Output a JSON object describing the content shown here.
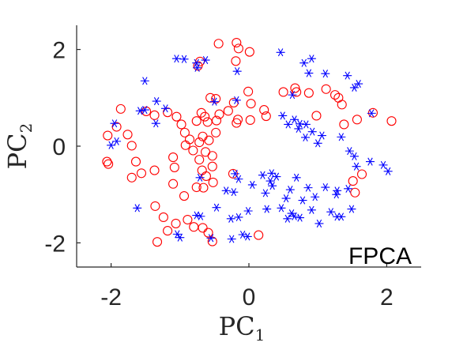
{
  "chart_data": {
    "type": "scatter",
    "title": "",
    "annotation": "FPCA",
    "xlabel": {
      "main": "PC",
      "sub": "1"
    },
    "ylabel": {
      "main": "PC",
      "sub": "2"
    },
    "xlim": [
      -2.5,
      2.5
    ],
    "ylim": [
      -2.5,
      2.5
    ],
    "x_ticks": [
      -2,
      0,
      2
    ],
    "y_ticks": [
      -2,
      0,
      2
    ],
    "x_tick_labels": [
      "-2",
      "0",
      "2"
    ],
    "y_tick_labels": [
      "-2",
      "0",
      "2"
    ],
    "grid": false,
    "legend": "none",
    "series": [
      {
        "marker": "circle",
        "color": "#ff0000",
        "points": [
          [
            -0.44,
            2.12
          ],
          [
            -0.18,
            2.14
          ],
          [
            -0.15,
            2.02
          ],
          [
            0.01,
            1.95
          ],
          [
            -0.19,
            1.76
          ],
          [
            -0.71,
            1.75
          ],
          [
            -0.74,
            1.66
          ],
          [
            -1.86,
            0.77
          ],
          [
            -1.92,
            0.4
          ],
          [
            -2.05,
            0.22
          ],
          [
            -2.06,
            -0.32
          ],
          [
            -2.04,
            -0.37
          ],
          [
            -1.76,
            0.24
          ],
          [
            -1.7,
            0.01
          ],
          [
            -1.64,
            -0.32
          ],
          [
            -1.56,
            -0.56
          ],
          [
            -1.7,
            -0.65
          ],
          [
            -1.37,
            -0.5
          ],
          [
            -1.1,
            -0.23
          ],
          [
            -1.08,
            -0.44
          ],
          [
            -1.1,
            -0.78
          ],
          [
            -1.36,
            -1.24
          ],
          [
            -1.24,
            -1.47
          ],
          [
            -1.18,
            -1.75
          ],
          [
            -1.33,
            -1.98
          ],
          [
            -1.06,
            -1.6
          ],
          [
            -0.89,
            -1.52
          ],
          [
            -0.94,
            -1.03
          ],
          [
            -0.66,
            -0.86
          ],
          [
            -0.76,
            -0.85
          ],
          [
            -0.8,
            -1.67
          ],
          [
            -0.67,
            -1.69
          ],
          [
            -0.59,
            -1.79
          ],
          [
            -0.53,
            -1.97
          ],
          [
            -0.23,
            -0.57
          ],
          [
            0.14,
            -1.84
          ],
          [
            -1.49,
            0.72
          ],
          [
            -1.37,
            0.64
          ],
          [
            -1.18,
            0.7
          ],
          [
            -1.05,
            0.61
          ],
          [
            -0.98,
            0.45
          ],
          [
            -0.93,
            0.28
          ],
          [
            -0.86,
            0.14
          ],
          [
            -0.92,
            0.02
          ],
          [
            -0.76,
            0.52
          ],
          [
            -0.69,
            0.69
          ],
          [
            -0.6,
            0.5
          ],
          [
            -0.58,
            0.12
          ],
          [
            -0.63,
            -0.12
          ],
          [
            -0.72,
            -0.28
          ],
          [
            -0.68,
            -0.5
          ],
          [
            -0.62,
            -0.62
          ],
          [
            -0.53,
            -0.42
          ],
          [
            -0.52,
            -0.75
          ],
          [
            -0.53,
            -0.2
          ],
          [
            -0.48,
            0.28
          ],
          [
            -0.56,
            1.0
          ],
          [
            -0.48,
            0.98
          ],
          [
            -0.43,
            0.66
          ],
          [
            -0.3,
            0.73
          ],
          [
            -0.22,
            0.9
          ],
          [
            -0.18,
            0.48
          ],
          [
            -0.16,
            0.55
          ],
          [
            0.02,
            0.54
          ],
          [
            0.03,
            0.88
          ],
          [
            -0.01,
            1.13
          ],
          [
            -0.72,
            0.08
          ],
          [
            -0.81,
            -0.09
          ],
          [
            -0.67,
            0.2
          ],
          [
            -0.64,
            0.61
          ],
          [
            -0.47,
            0.53
          ],
          [
            0.22,
            0.75
          ],
          [
            0.25,
            0.62
          ],
          [
            0.5,
            1.12
          ],
          [
            0.69,
            1.12
          ],
          [
            0.87,
            1.1
          ],
          [
            1.12,
            1.18
          ],
          [
            1.25,
            1.06
          ],
          [
            1.3,
            1.0
          ],
          [
            1.35,
            0.86
          ],
          [
            1.38,
            0.45
          ],
          [
            1.57,
            0.55
          ],
          [
            0.98,
            0.63
          ],
          [
            1.64,
            -0.58
          ],
          [
            1.51,
            -0.72
          ],
          [
            1.54,
            -0.96
          ],
          [
            1.8,
            0.69
          ],
          [
            2.07,
            0.52
          ],
          [
            0.67,
            1.2
          ]
        ]
      },
      {
        "marker": "asterisk",
        "color": "#0000ff",
        "points": [
          [
            -1.05,
            1.81
          ],
          [
            -0.94,
            1.8
          ],
          [
            -0.76,
            1.72
          ],
          [
            -0.63,
            1.78
          ],
          [
            -0.75,
            1.62
          ],
          [
            -0.17,
            1.55
          ],
          [
            -1.51,
            1.35
          ],
          [
            -1.58,
            0.73
          ],
          [
            -1.51,
            0.75
          ],
          [
            -1.34,
            0.93
          ],
          [
            -1.21,
            0.78
          ],
          [
            -1.35,
            0.47
          ],
          [
            -1.95,
            0.47
          ],
          [
            -2.0,
            0.02
          ],
          [
            -1.92,
            0.1
          ],
          [
            -0.5,
            0.92
          ],
          [
            -0.18,
            0.95
          ],
          [
            0.46,
            1.94
          ],
          [
            0.91,
            1.81
          ],
          [
            0.8,
            1.72
          ],
          [
            0.87,
            1.51
          ],
          [
            1.11,
            1.5
          ],
          [
            1.43,
            1.46
          ],
          [
            1.59,
            1.29
          ],
          [
            1.53,
            1.21
          ],
          [
            0.63,
            1.06
          ],
          [
            0.49,
            0.63
          ],
          [
            0.57,
            0.45
          ],
          [
            0.66,
            0.55
          ],
          [
            0.83,
            0.45
          ],
          [
            0.74,
            0.46
          ],
          [
            0.92,
            0.3
          ],
          [
            1.06,
            0.22
          ],
          [
            1.0,
            0.06
          ],
          [
            1.34,
            0.19
          ],
          [
            1.46,
            -0.1
          ],
          [
            1.53,
            -0.21
          ],
          [
            1.56,
            -0.42
          ],
          [
            1.76,
            -0.32
          ],
          [
            1.95,
            -0.39
          ],
          [
            2.02,
            -0.52
          ],
          [
            1.78,
            0.68
          ],
          [
            1.44,
            -0.88
          ],
          [
            1.28,
            -0.92
          ],
          [
            1.11,
            -0.85
          ],
          [
            0.86,
            -0.86
          ],
          [
            0.96,
            -1.05
          ],
          [
            0.78,
            -1.12
          ],
          [
            0.54,
            -1.08
          ],
          [
            0.6,
            -0.9
          ],
          [
            0.33,
            -0.56
          ],
          [
            0.4,
            -0.63
          ],
          [
            0.34,
            -0.82
          ],
          [
            0.24,
            -0.97
          ],
          [
            0.31,
            -0.72
          ],
          [
            0.2,
            -0.6
          ],
          [
            0.05,
            -0.8
          ],
          [
            -0.15,
            -0.68
          ],
          [
            -0.2,
            -0.57
          ],
          [
            -0.22,
            -0.95
          ],
          [
            -0.33,
            -0.92
          ],
          [
            -0.01,
            -1.34
          ],
          [
            -0.15,
            -1.47
          ],
          [
            -0.26,
            -1.5
          ],
          [
            -0.47,
            -1.27
          ],
          [
            -0.7,
            -1.45
          ],
          [
            -0.76,
            -1.43
          ],
          [
            -1.04,
            -1.82
          ],
          [
            -1.0,
            -1.89
          ],
          [
            -0.55,
            -1.9
          ],
          [
            -0.25,
            -1.92
          ],
          [
            -0.09,
            -1.83
          ],
          [
            -0.02,
            -1.87
          ],
          [
            -0.71,
            -0.65
          ],
          [
            0.26,
            -1.3
          ],
          [
            0.47,
            -1.28
          ],
          [
            0.62,
            -1.39
          ],
          [
            0.66,
            -1.45
          ],
          [
            0.74,
            -1.48
          ],
          [
            0.91,
            -1.32
          ],
          [
            1.02,
            -1.6
          ],
          [
            1.19,
            -1.36
          ],
          [
            1.28,
            -1.46
          ],
          [
            1.34,
            -1.46
          ],
          [
            1.49,
            -1.3
          ],
          [
            1.27,
            -1.0
          ],
          [
            -1.62,
            -1.28
          ],
          [
            0.56,
            -1.5
          ],
          [
            0.69,
            -0.65
          ],
          [
            0.82,
            0.18
          ],
          [
            0.72,
            0.36
          ]
        ]
      }
    ]
  }
}
